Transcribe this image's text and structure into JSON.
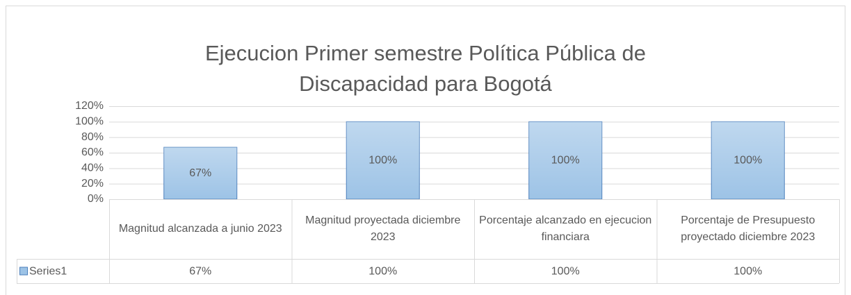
{
  "chart_data": {
    "type": "bar",
    "title": "Ejecucion Primer semestre Política Pública de Discapacidad para Bogotá",
    "categories": [
      "Magnitud alcanzada a junio 2023",
      "Magnitud proyectada diciembre 2023",
      "Porcentaje alcanzado en ejecucion financiara",
      "Porcentaje de Presupuesto proyectado diciembre 2023"
    ],
    "series": [
      {
        "name": "Series1",
        "color": "#9dc3e6",
        "border_color": "#4a7ebb",
        "values": [
          67,
          100,
          100,
          100
        ],
        "value_labels": [
          "67%",
          "100%",
          "100%",
          "100%"
        ]
      }
    ],
    "ylim": [
      0,
      120
    ],
    "yticks": [
      {
        "value": 0,
        "label": "0%"
      },
      {
        "value": 20,
        "label": "20%"
      },
      {
        "value": 40,
        "label": "40%"
      },
      {
        "value": 60,
        "label": "60%"
      },
      {
        "value": 80,
        "label": "80%"
      },
      {
        "value": 100,
        "label": "100%"
      },
      {
        "value": 120,
        "label": "120%"
      }
    ],
    "grid": true,
    "data_table": true
  }
}
